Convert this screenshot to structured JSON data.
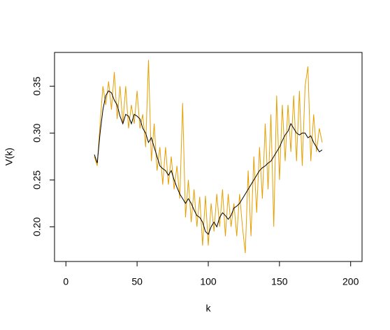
{
  "chart_data": {
    "type": "line",
    "x_label": "k",
    "y_label": "V(k)",
    "x": [
      20,
      22,
      24,
      26,
      28,
      30,
      32,
      34,
      36,
      38,
      40,
      42,
      44,
      46,
      48,
      50,
      52,
      54,
      56,
      58,
      60,
      62,
      64,
      66,
      68,
      70,
      72,
      74,
      76,
      78,
      80,
      82,
      84,
      86,
      88,
      90,
      92,
      94,
      96,
      98,
      100,
      102,
      104,
      106,
      108,
      110,
      112,
      114,
      116,
      118,
      120,
      122,
      124,
      126,
      128,
      130,
      132,
      134,
      136,
      138,
      140,
      142,
      144,
      146,
      148,
      150,
      152,
      154,
      156,
      158,
      160,
      162,
      164,
      166,
      168,
      170,
      172,
      174,
      176,
      178,
      180
    ],
    "series": [
      {
        "color": "#e69f00",
        "values": [
          0.275,
          0.265,
          0.31,
          0.35,
          0.33,
          0.355,
          0.325,
          0.365,
          0.315,
          0.35,
          0.31,
          0.35,
          0.305,
          0.33,
          0.31,
          0.345,
          0.305,
          0.32,
          0.285,
          0.378,
          0.27,
          0.31,
          0.26,
          0.285,
          0.245,
          0.285,
          0.245,
          0.275,
          0.24,
          0.265,
          0.23,
          0.332,
          0.21,
          0.25,
          0.205,
          0.24,
          0.2,
          0.232,
          0.18,
          0.233,
          0.18,
          0.225,
          0.195,
          0.235,
          0.2,
          0.24,
          0.19,
          0.235,
          0.2,
          0.225,
          0.19,
          0.235,
          0.2,
          0.172,
          0.26,
          0.19,
          0.275,
          0.215,
          0.285,
          0.23,
          0.31,
          0.24,
          0.32,
          0.2,
          0.34,
          0.25,
          0.33,
          0.27,
          0.33,
          0.28,
          0.34,
          0.27,
          0.345,
          0.265,
          0.35,
          0.371,
          0.27,
          0.32,
          0.28,
          0.305,
          0.29
        ]
      },
      {
        "color": "#000000",
        "values": [
          0.277,
          0.268,
          0.3,
          0.325,
          0.34,
          0.345,
          0.343,
          0.335,
          0.33,
          0.318,
          0.31,
          0.32,
          0.318,
          0.31,
          0.32,
          0.318,
          0.315,
          0.305,
          0.3,
          0.29,
          0.295,
          0.285,
          0.275,
          0.265,
          0.262,
          0.26,
          0.255,
          0.26,
          0.25,
          0.242,
          0.235,
          0.23,
          0.225,
          0.23,
          0.225,
          0.218,
          0.212,
          0.21,
          0.205,
          0.195,
          0.192,
          0.2,
          0.205,
          0.2,
          0.21,
          0.215,
          0.212,
          0.208,
          0.212,
          0.22,
          0.222,
          0.225,
          0.23,
          0.235,
          0.24,
          0.245,
          0.25,
          0.255,
          0.26,
          0.263,
          0.265,
          0.268,
          0.27,
          0.275,
          0.28,
          0.285,
          0.292,
          0.298,
          0.302,
          0.31,
          0.305,
          0.3,
          0.298,
          0.3,
          0.3,
          0.295,
          0.297,
          0.29,
          0.285,
          0.28,
          0.282
        ]
      }
    ],
    "xlim": [
      -8,
      208
    ],
    "xticks": [
      0,
      50,
      100,
      150,
      200
    ],
    "ylim": [
      0.163,
      0.386
    ],
    "yticks": [
      {
        "value": 0.2,
        "label": "0.20"
      },
      0.25,
      {
        "value": 0.3,
        "label": "0.30"
      },
      0.35
    ]
  }
}
